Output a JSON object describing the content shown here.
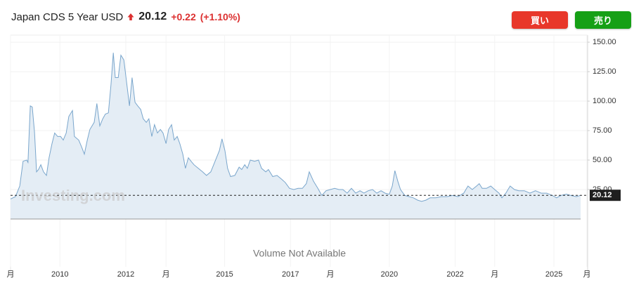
{
  "chart_data": {
    "type": "area",
    "title": "Japan CDS 5 Year USD",
    "last_value": 20.12,
    "change": "+0.22",
    "change_percent": "(+1.10%)",
    "buttons": [
      "買い",
      "売り"
    ],
    "volume_note": "Volume Not Available",
    "watermark": "Investing.com",
    "color": "#7aa6cc",
    "fill": "#e4edf5",
    "xlim": [
      2008.5,
      2026.0
    ],
    "ylim": [
      0,
      156
    ],
    "xticks": [
      {
        "value": 2008.5,
        "label": "月"
      },
      2010,
      2012,
      {
        "value": 2013.22,
        "label": "月"
      },
      2015,
      2017,
      {
        "value": 2018.21,
        "label": "月"
      },
      2020,
      2022,
      {
        "value": 2023.2,
        "label": "月"
      },
      2025,
      {
        "value": 2026.0,
        "label": "月"
      }
    ],
    "yticks": [
      {
        "value": 25,
        "label": "25.00"
      },
      {
        "value": 50,
        "label": "50.00"
      },
      {
        "value": 75,
        "label": "75.00"
      },
      {
        "value": 100,
        "label": "100.00"
      },
      {
        "value": 125,
        "label": "125.00"
      },
      {
        "value": 150,
        "label": "150.00"
      }
    ],
    "grid": true,
    "x": [
      2008.5,
      2008.65,
      2008.78,
      2008.88,
      2008.99,
      2009.03,
      2009.1,
      2009.16,
      2009.23,
      2009.29,
      2009.35,
      2009.42,
      2009.5,
      2009.59,
      2009.67,
      2009.76,
      2009.84,
      2009.93,
      2010.02,
      2010.1,
      2010.19,
      2010.27,
      2010.38,
      2010.44,
      2010.57,
      2010.66,
      2010.74,
      2010.83,
      2010.91,
      2011.04,
      2011.12,
      2011.21,
      2011.3,
      2011.38,
      2011.47,
      2011.55,
      2011.62,
      2011.68,
      2011.77,
      2011.85,
      2011.94,
      2012.02,
      2012.11,
      2012.19,
      2012.28,
      2012.36,
      2012.45,
      2012.53,
      2012.62,
      2012.7,
      2012.79,
      2012.87,
      2012.96,
      2013.05,
      2013.13,
      2013.22,
      2013.3,
      2013.39,
      2013.47,
      2013.56,
      2013.64,
      2013.73,
      2013.81,
      2013.9,
      2013.98,
      2014.07,
      2014.2,
      2014.33,
      2014.45,
      2014.58,
      2014.71,
      2014.84,
      2014.92,
      2015.01,
      2015.09,
      2015.18,
      2015.31,
      2015.44,
      2015.52,
      2015.61,
      2015.69,
      2015.78,
      2015.91,
      2016.03,
      2016.12,
      2016.25,
      2016.33,
      2016.46,
      2016.59,
      2016.72,
      2016.84,
      2016.97,
      2017.1,
      2017.23,
      2017.36,
      2017.48,
      2017.57,
      2017.7,
      2017.83,
      2017.95,
      2018.08,
      2018.21,
      2018.34,
      2018.47,
      2018.59,
      2018.72,
      2018.85,
      2018.98,
      2019.11,
      2019.23,
      2019.36,
      2019.49,
      2019.62,
      2019.75,
      2019.87,
      2020.0,
      2020.09,
      2020.17,
      2020.26,
      2020.34,
      2020.47,
      2020.6,
      2020.73,
      2020.86,
      2020.98,
      2021.11,
      2021.24,
      2021.41,
      2021.58,
      2021.75,
      2021.92,
      2022.09,
      2022.26,
      2022.39,
      2022.52,
      2022.65,
      2022.73,
      2022.82,
      2022.95,
      2023.08,
      2023.2,
      2023.33,
      2023.42,
      2023.54,
      2023.67,
      2023.8,
      2023.93,
      2024.1,
      2024.27,
      2024.44,
      2024.61,
      2024.78,
      2024.95,
      2025.08,
      2025.21,
      2025.38,
      2025.51,
      2025.68,
      2025.81
    ],
    "values": [
      17,
      19,
      28,
      49,
      50,
      48,
      96,
      95,
      73,
      40,
      42,
      46,
      40,
      37,
      52,
      64,
      73,
      70,
      70,
      67,
      73,
      87,
      92,
      70,
      67,
      61,
      55,
      67,
      76,
      82,
      98,
      79,
      85,
      89,
      90,
      114,
      141,
      120,
      120,
      139,
      135,
      117,
      96,
      120,
      99,
      96,
      93,
      85,
      82,
      85,
      70,
      80,
      73,
      76,
      73,
      64,
      76,
      80,
      67,
      70,
      64,
      55,
      43,
      52,
      49,
      46,
      43,
      40,
      37,
      40,
      49,
      58,
      68,
      58,
      43,
      36,
      37,
      44,
      42,
      46,
      43,
      50,
      49,
      50,
      43,
      40,
      42,
      36,
      37,
      34,
      31,
      26,
      25,
      26,
      26,
      30,
      40,
      32,
      26,
      20,
      24,
      25,
      26,
      25,
      25,
      22,
      26,
      22,
      24,
      22,
      24,
      25,
      22,
      24,
      22,
      21,
      28,
      41,
      32,
      25,
      20,
      19,
      18,
      16,
      15,
      16,
      18,
      18,
      19,
      19,
      20,
      19,
      22,
      28,
      25,
      28,
      30,
      26,
      26,
      28,
      25,
      22,
      18,
      22,
      28,
      25,
      24,
      24,
      22,
      24,
      22,
      22,
      20,
      18,
      20,
      21,
      20,
      19,
      20.12
    ]
  }
}
